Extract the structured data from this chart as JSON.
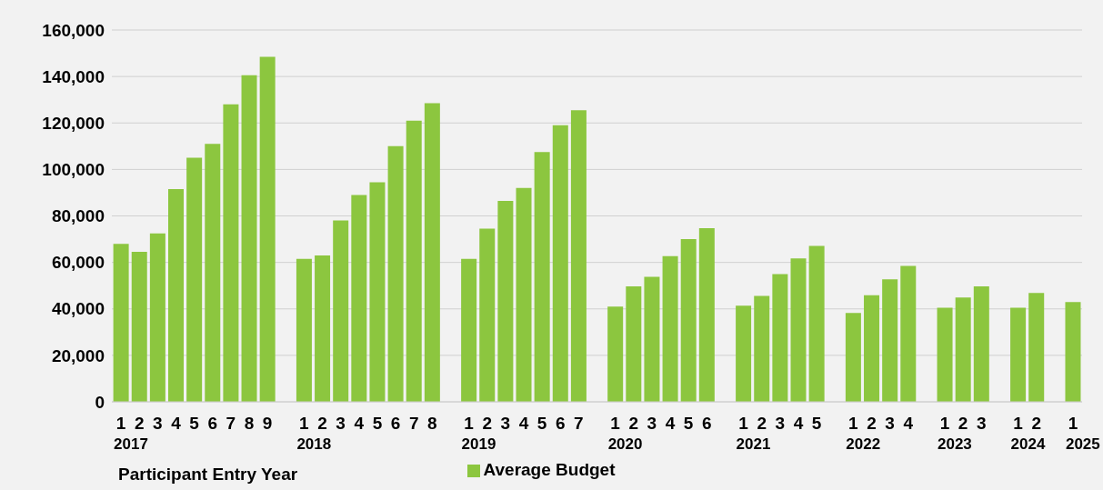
{
  "chart_data": {
    "type": "bar",
    "xlabel": "Participant Entry Year",
    "legend": "bottom",
    "grid": "y",
    "categories": [
      "1",
      "2",
      "3",
      "4",
      "5",
      "6",
      "7",
      "8",
      "9",
      null,
      "1",
      "2",
      "3",
      "4",
      "5",
      "6",
      "7",
      "8",
      null,
      "1",
      "2",
      "3",
      "4",
      "5",
      "6",
      "7",
      null,
      "1",
      "2",
      "3",
      "4",
      "5",
      "6",
      null,
      "1",
      "2",
      "3",
      "4",
      "5",
      null,
      "1",
      "2",
      "3",
      "4",
      null,
      "1",
      "2",
      "3",
      null,
      "1",
      "2",
      null,
      "1"
    ],
    "series": [
      {
        "name": "Average Budget",
        "color": "#8cc63f",
        "values": [
          68000,
          64500,
          72500,
          91500,
          105000,
          111000,
          128000,
          140500,
          148500,
          null,
          61500,
          63000,
          78000,
          89000,
          94500,
          110000,
          121000,
          128500,
          null,
          61500,
          74500,
          86500,
          92000,
          107500,
          119000,
          125500,
          null,
          41000,
          49700,
          53800,
          62700,
          70000,
          74700,
          null,
          41400,
          45600,
          55000,
          61700,
          67100,
          null,
          38200,
          45900,
          52700,
          58500,
          null,
          40500,
          44900,
          49700,
          null,
          40500,
          46800,
          null,
          42900
        ]
      }
    ],
    "annotations": [
      "2017",
      "2018",
      "2019",
      "2020",
      "2021",
      "2022",
      "2023",
      "2024",
      "2025"
    ],
    "ylim": [
      0,
      160000
    ],
    "yticks": [
      0,
      {
        "value": 20000,
        "label": "20,000"
      },
      {
        "value": 40000,
        "label": "40,000"
      },
      {
        "value": 60000,
        "label": "60,000"
      },
      {
        "value": 80000,
        "label": "80,000"
      },
      {
        "value": 100000,
        "label": "100,000"
      },
      {
        "value": 120000,
        "label": "120,000"
      },
      {
        "value": 140000,
        "label": "140,000"
      },
      {
        "value": 160000,
        "label": "160,000"
      }
    ]
  }
}
